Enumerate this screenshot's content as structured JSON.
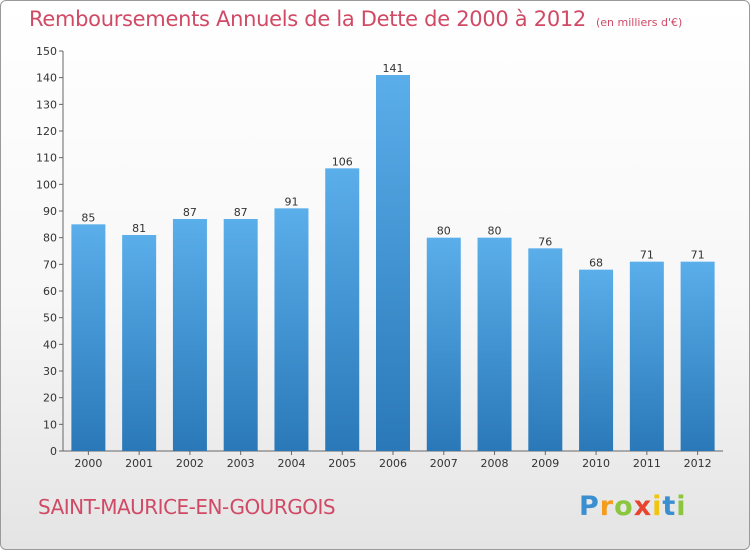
{
  "header": {
    "title": "Remboursements Annuels de la Dette de 2000 à 2012",
    "subtitle": "(en milliers d'€)"
  },
  "footer": {
    "commune": "SAINT-MAURICE-EN-GOURGOIS",
    "logo_text": "Proxiti"
  },
  "colors": {
    "title": "#d04a66",
    "bar_top": "#5aaeea",
    "bar_bottom": "#2a78b8"
  },
  "chart_data": {
    "type": "bar",
    "title": "Remboursements Annuels de la Dette de 2000 à 2012",
    "unit": "(en milliers d'€)",
    "categories": [
      "2000",
      "2001",
      "2002",
      "2003",
      "2004",
      "2005",
      "2006",
      "2007",
      "2008",
      "2009",
      "2010",
      "2011",
      "2012"
    ],
    "values": [
      85,
      81,
      87,
      87,
      91,
      106,
      141,
      80,
      80,
      76,
      68,
      71,
      71
    ],
    "ylim": [
      0,
      150
    ],
    "yticks": [
      0,
      10,
      20,
      30,
      40,
      50,
      60,
      70,
      80,
      90,
      100,
      110,
      120,
      130,
      140,
      150
    ],
    "grid": false,
    "data_labels": true
  }
}
